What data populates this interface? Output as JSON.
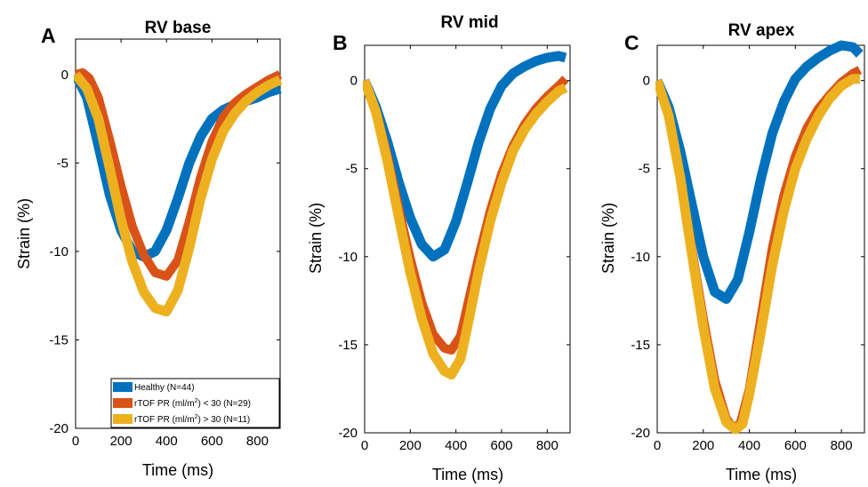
{
  "colors": {
    "healthy": "#0072BD",
    "low_pr": "#D95319",
    "high_pr": "#EDB120"
  },
  "chart_data": [
    {
      "type": "line",
      "letter": "A",
      "title": "RV base",
      "xlabel": "Time (ms)",
      "ylabel": "Strain (%)",
      "xlim": [
        0,
        900
      ],
      "ylim": [
        -20,
        2
      ],
      "xticks": [
        0,
        200,
        400,
        600,
        800
      ],
      "xtick_labels": [
        "0",
        "200",
        "400",
        "600",
        "800"
      ],
      "yticks": [
        0,
        -5,
        -10,
        -15,
        -20
      ],
      "ytick_labels": [
        "0",
        "-5",
        "-10",
        "-15",
        "-20"
      ],
      "legend": {
        "location": "bottom-right",
        "entries": [
          {
            "pre": "Healthy (N=44)",
            "sup": "",
            "post": "",
            "color_key": "healthy"
          },
          {
            "pre": "rTOF PR (ml/m",
            "sup": "2",
            "post": ") < 30 (N=29)",
            "color_key": "low_pr"
          },
          {
            "pre": "rTOF PR (ml/m",
            "sup": "2",
            "post": ") > 30 (N=11)",
            "color_key": "high_pr"
          }
        ]
      },
      "series": [
        {
          "color_key": "healthy",
          "x": [
            0,
            50,
            100,
            150,
            200,
            250,
            300,
            350,
            400,
            450,
            500,
            550,
            600,
            650,
            700,
            750,
            800,
            850,
            900
          ],
          "y": [
            0,
            -1.3,
            -4.0,
            -6.8,
            -8.8,
            -10.0,
            -10.3,
            -10.0,
            -8.8,
            -7.0,
            -5.0,
            -3.5,
            -2.5,
            -2.0,
            -1.7,
            -1.5,
            -1.3,
            -1.0,
            -0.8
          ]
        },
        {
          "color_key": "low_pr",
          "x": [
            0,
            30,
            60,
            100,
            150,
            200,
            250,
            300,
            350,
            400,
            450,
            500,
            550,
            600,
            650,
            700,
            750,
            800,
            850,
            900
          ],
          "y": [
            0,
            0.1,
            -0.2,
            -1.3,
            -3.7,
            -6.3,
            -8.6,
            -10.2,
            -11.2,
            -11.4,
            -10.5,
            -8.3,
            -5.8,
            -3.8,
            -2.4,
            -1.6,
            -1.1,
            -0.7,
            -0.3,
            0
          ]
        },
        {
          "color_key": "high_pr",
          "x": [
            0,
            50,
            100,
            150,
            200,
            250,
            300,
            350,
            400,
            450,
            500,
            550,
            600,
            650,
            700,
            750,
            800,
            850,
            900
          ],
          "y": [
            0,
            -0.8,
            -2.5,
            -5.3,
            -8.2,
            -10.6,
            -12.3,
            -13.2,
            -13.4,
            -12.2,
            -9.8,
            -7.0,
            -4.8,
            -3.2,
            -2.2,
            -1.5,
            -1.0,
            -0.6,
            -0.3
          ]
        }
      ]
    },
    {
      "type": "line",
      "letter": "B",
      "title": "RV mid",
      "xlabel": "Time (ms)",
      "ylabel": "Strain (%)",
      "xlim": [
        0,
        900
      ],
      "ylim": [
        -20,
        2
      ],
      "xticks": [
        0,
        200,
        400,
        600,
        800
      ],
      "xtick_labels": [
        "0",
        "200",
        "400",
        "600",
        "800"
      ],
      "yticks": [
        0,
        -5,
        -10,
        -15,
        -20
      ],
      "ytick_labels": [
        "0",
        "-5",
        "-10",
        "-15",
        "-20"
      ],
      "series": [
        {
          "color_key": "healthy",
          "x": [
            0,
            50,
            100,
            150,
            200,
            250,
            300,
            350,
            400,
            450,
            500,
            550,
            600,
            650,
            700,
            750,
            800,
            850,
            880
          ],
          "y": [
            0,
            -1.5,
            -3.5,
            -5.8,
            -7.8,
            -9.3,
            -10.0,
            -9.6,
            -8.0,
            -5.8,
            -3.5,
            -1.6,
            -0.3,
            0.4,
            0.8,
            1.1,
            1.3,
            1.4,
            1.3
          ]
        },
        {
          "color_key": "low_pr",
          "x": [
            0,
            50,
            100,
            150,
            200,
            250,
            300,
            350,
            380,
            420,
            450,
            500,
            550,
            600,
            650,
            700,
            750,
            800,
            850,
            880
          ],
          "y": [
            0,
            -1.7,
            -4.3,
            -7.3,
            -10.1,
            -12.6,
            -14.4,
            -15.2,
            -15.3,
            -14.5,
            -12.8,
            -10.0,
            -7.4,
            -5.3,
            -3.7,
            -2.5,
            -1.6,
            -0.9,
            -0.3,
            0.1
          ]
        },
        {
          "color_key": "high_pr",
          "x": [
            0,
            50,
            100,
            150,
            200,
            250,
            300,
            350,
            380,
            420,
            450,
            500,
            550,
            600,
            650,
            700,
            750,
            800,
            850,
            880
          ],
          "y": [
            0,
            -1.8,
            -4.6,
            -7.8,
            -10.9,
            -13.5,
            -15.5,
            -16.5,
            -16.7,
            -15.8,
            -14.0,
            -10.8,
            -8.0,
            -5.8,
            -4.0,
            -2.8,
            -1.9,
            -1.2,
            -0.6,
            -0.4
          ]
        }
      ]
    },
    {
      "type": "line",
      "letter": "C",
      "title": "RV apex",
      "xlabel": "Time (ms)",
      "ylabel": "Strain (%)",
      "xlim": [
        0,
        900
      ],
      "ylim": [
        -20,
        2
      ],
      "xticks": [
        0,
        200,
        400,
        600,
        800
      ],
      "xtick_labels": [
        "0",
        "200",
        "400",
        "600",
        "800"
      ],
      "yticks": [
        0,
        -5,
        -10,
        -15,
        -20
      ],
      "ytick_labels": [
        "0",
        "-5",
        "-10",
        "-15",
        "-20"
      ],
      "series": [
        {
          "color_key": "healthy",
          "x": [
            0,
            50,
            100,
            150,
            200,
            250,
            300,
            350,
            400,
            450,
            500,
            550,
            600,
            650,
            700,
            750,
            800,
            850,
            880
          ],
          "y": [
            0,
            -1.5,
            -4.0,
            -7.0,
            -10.0,
            -12.0,
            -12.4,
            -11.3,
            -8.6,
            -5.6,
            -3.0,
            -1.2,
            0.1,
            0.8,
            1.3,
            1.7,
            2.0,
            1.9,
            1.5
          ]
        },
        {
          "color_key": "low_pr",
          "x": [
            0,
            50,
            100,
            150,
            200,
            250,
            300,
            330,
            360,
            400,
            450,
            500,
            550,
            600,
            650,
            700,
            750,
            800,
            850,
            880
          ],
          "y": [
            0,
            -2.0,
            -5.5,
            -9.5,
            -13.5,
            -17.0,
            -19.2,
            -19.7,
            -19.5,
            -17.5,
            -13.5,
            -9.5,
            -6.5,
            -4.3,
            -2.7,
            -1.6,
            -0.8,
            -0.1,
            0.4,
            0.6
          ]
        },
        {
          "color_key": "high_pr",
          "x": [
            0,
            50,
            100,
            150,
            200,
            250,
            300,
            340,
            370,
            400,
            450,
            500,
            550,
            600,
            650,
            700,
            750,
            800,
            850,
            880
          ],
          "y": [
            0,
            -2.0,
            -5.5,
            -9.8,
            -14.0,
            -17.5,
            -19.4,
            -19.8,
            -19.5,
            -17.8,
            -14.3,
            -10.5,
            -7.4,
            -5.0,
            -3.3,
            -2.0,
            -1.0,
            -0.3,
            0.1,
            0.1
          ]
        }
      ]
    }
  ]
}
